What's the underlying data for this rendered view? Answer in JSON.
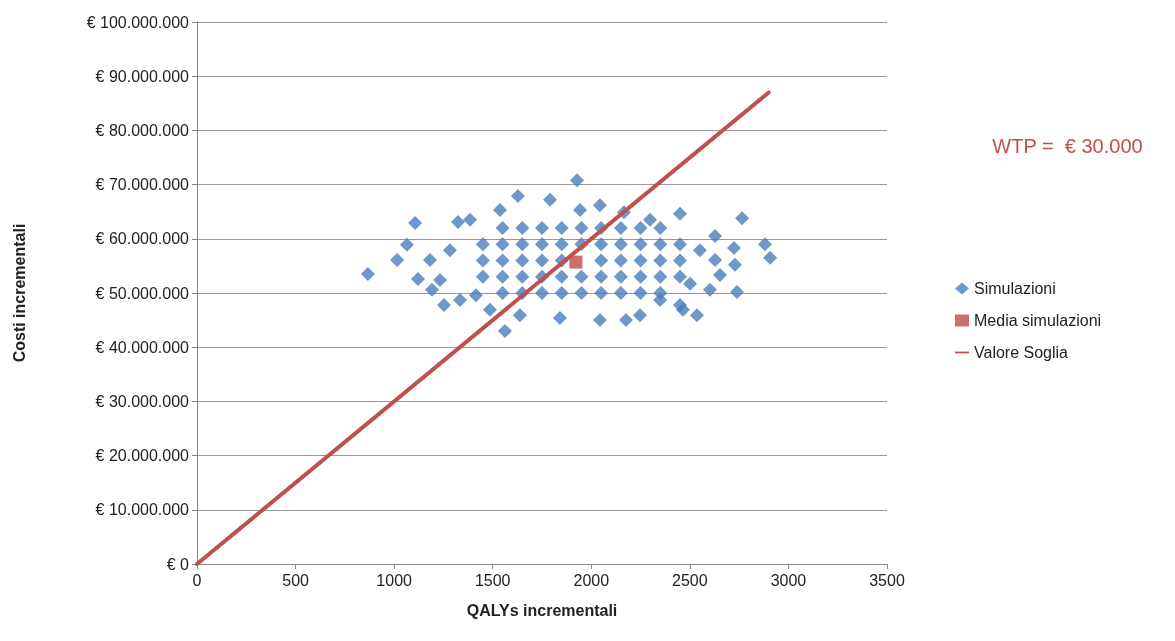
{
  "chart_data": {
    "type": "scatter",
    "xlabel": "QALYs incrementali",
    "ylabel": "Costi incrementali",
    "xlim": [
      0,
      3500
    ],
    "xticks": [
      0,
      500,
      1000,
      1500,
      2000,
      2500,
      3000,
      3500
    ],
    "ylim": [
      0,
      100000000
    ],
    "yticks": [
      {
        "value": 0,
        "label": "€ 0"
      },
      {
        "value": 10000000,
        "label": "€ 10.000.000"
      },
      {
        "value": 20000000,
        "label": "€ 20.000.000"
      },
      {
        "value": 30000000,
        "label": "€ 30.000.000"
      },
      {
        "value": 40000000,
        "label": "€ 40.000.000"
      },
      {
        "value": 50000000,
        "label": "€ 50.000.000"
      },
      {
        "value": 60000000,
        "label": "€ 60.000.000"
      },
      {
        "value": 70000000,
        "label": "€ 70.000.000"
      },
      {
        "value": 80000000,
        "label": "€ 80.000.000"
      },
      {
        "value": 90000000,
        "label": "€ 90.000.000"
      },
      {
        "value": 100000000,
        "label": "€ 100.000.000"
      }
    ],
    "grid": "y",
    "legend": "right",
    "annotations": [
      "WTP =  € 30.000"
    ],
    "series": [
      {
        "name": "Simulazioni",
        "marker": "diamond",
        "color": "#4a7ebb",
        "x": [
          867,
          1015,
          1065,
          1106,
          1121,
          1192,
          1253,
          1324,
          1415,
          1562,
          1628,
          1928,
          1943,
          2166,
          2176,
          2450,
          2465,
          2536,
          2765,
          2729,
          2739,
          2724,
          2881,
          2907,
          2628,
          2653,
          2551,
          2501,
          2349,
          2298,
          2044,
          1791,
          1537,
          1385,
          1283,
          1182,
          1233,
          1334,
          1486,
          1638,
          1841,
          2044,
          2247,
          2450,
          2602,
          2628,
          1450,
          1450,
          1450,
          1550,
          1550,
          1550,
          1550,
          1550,
          1650,
          1650,
          1650,
          1650,
          1650,
          1750,
          1750,
          1750,
          1750,
          1750,
          1850,
          1850,
          1850,
          1850,
          1850,
          1950,
          1950,
          1950,
          1950,
          2050,
          2050,
          2050,
          2050,
          2050,
          2150,
          2150,
          2150,
          2150,
          2150,
          2250,
          2250,
          2250,
          2250,
          2250,
          2350,
          2350,
          2350,
          2350,
          2350,
          2450,
          2450,
          2450
        ],
        "values": [
          53500000,
          56100000,
          58900000,
          62900000,
          52600000,
          50600000,
          47800000,
          63100000,
          49600000,
          43000000,
          67900000,
          70800000,
          65300000,
          64900000,
          45000000,
          64600000,
          46900000,
          45900000,
          63800000,
          55200000,
          50200000,
          58300000,
          59000000,
          56500000,
          60500000,
          53300000,
          57900000,
          51700000,
          48700000,
          63500000,
          66200000,
          67200000,
          65300000,
          63500000,
          57900000,
          56100000,
          52400000,
          48700000,
          46900000,
          45900000,
          45400000,
          45000000,
          45900000,
          47800000,
          50600000,
          56100000,
          53000000,
          56000000,
          59000000,
          50000000,
          53000000,
          56000000,
          59000000,
          62000000,
          50000000,
          53000000,
          56000000,
          59000000,
          62000000,
          50000000,
          53000000,
          56000000,
          59000000,
          62000000,
          50000000,
          53000000,
          56000000,
          59000000,
          62000000,
          50000000,
          53000000,
          59000000,
          62000000,
          50000000,
          53000000,
          56000000,
          59000000,
          62000000,
          50000000,
          53000000,
          56000000,
          59000000,
          62000000,
          50000000,
          53000000,
          56000000,
          59000000,
          62000000,
          50000000,
          53000000,
          56000000,
          59000000,
          62000000,
          53000000,
          56000000,
          59000000
        ]
      },
      {
        "name": "Media simulazioni",
        "marker": "square",
        "color": "#be4b48",
        "x": [
          1922
        ],
        "values": [
          55700000
        ]
      },
      {
        "name": "Valore Soglia",
        "type": "line",
        "marker": "none",
        "color": "#c0504d",
        "x": [
          0,
          2900
        ],
        "values": [
          0,
          87000000
        ]
      }
    ]
  }
}
